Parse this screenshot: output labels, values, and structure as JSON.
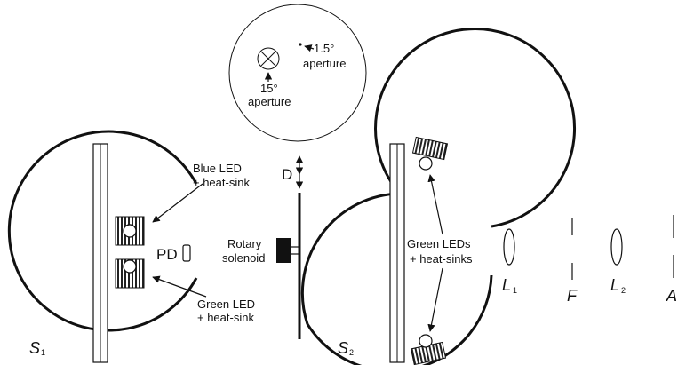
{
  "inset": {
    "small_aperture": "1.5°",
    "small_aperture_word": "aperture",
    "large_aperture": "15°",
    "large_aperture_word": "aperture"
  },
  "sphere1": {
    "label": "S",
    "label_sub": "1",
    "blue_led_line1": "Blue LED",
    "blue_led_line2": "+ heat-sink",
    "green_led_line1": "Green LED",
    "green_led_line2": "+ heat-sink",
    "photodiode": "PD"
  },
  "shutter": {
    "distance_label": "D",
    "solenoid_line1": "Rotary",
    "solenoid_line2": "solenoid"
  },
  "sphere2": {
    "label": "S",
    "label_sub": "2",
    "leds_line1": "Green LEDs",
    "leds_line2": "+ heat-sinks"
  },
  "optics": {
    "lens1": "L",
    "lens1_sub": "1",
    "filter": "F",
    "lens2": "L",
    "lens2_sub": "2",
    "aperture": "A"
  }
}
